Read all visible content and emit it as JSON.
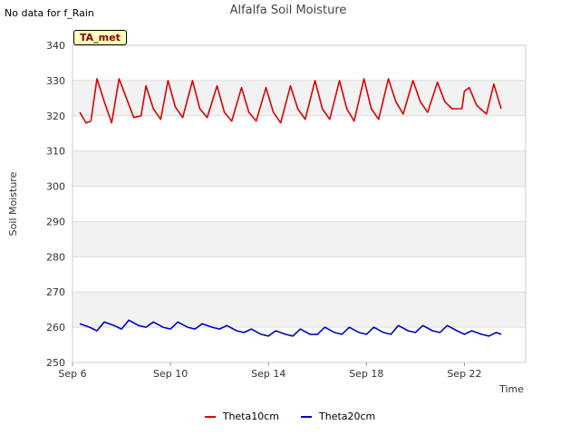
{
  "no_data_note": "No data for f_Rain",
  "badge_label": "TA_met",
  "colors": {
    "theta10": "#dd0000",
    "theta20": "#0000cc",
    "band": "#f2f2f2",
    "grid": "#dddddd"
  },
  "chart_data": {
    "type": "line",
    "title": "Alfalfa Soil Moisture",
    "xlabel": "Time",
    "ylabel": "Soil Moisture",
    "ylim": [
      250,
      340
    ],
    "xlim_days": [
      6.0,
      24.5
    ],
    "yticks": [
      250,
      260,
      270,
      280,
      290,
      300,
      310,
      320,
      330,
      340
    ],
    "xticks": [
      {
        "day": 6,
        "label": "Sep 6"
      },
      {
        "day": 10,
        "label": "Sep 10"
      },
      {
        "day": 14,
        "label": "Sep 14"
      },
      {
        "day": 18,
        "label": "Sep 18"
      },
      {
        "day": 22,
        "label": "Sep 22"
      }
    ],
    "series": [
      {
        "name": "Theta10cm",
        "color": "#dd0000",
        "x": [
          6.3,
          6.55,
          6.75,
          7.0,
          7.3,
          7.6,
          7.9,
          8.2,
          8.5,
          8.8,
          9.0,
          9.3,
          9.6,
          9.9,
          10.2,
          10.5,
          10.9,
          11.2,
          11.5,
          11.9,
          12.2,
          12.5,
          12.9,
          13.2,
          13.5,
          13.9,
          14.2,
          14.5,
          14.9,
          15.2,
          15.5,
          15.9,
          16.2,
          16.5,
          16.9,
          17.2,
          17.5,
          17.9,
          18.2,
          18.5,
          18.9,
          19.2,
          19.5,
          19.9,
          20.2,
          20.5,
          20.9,
          21.2,
          21.5,
          21.9,
          22.0,
          22.2,
          22.5,
          22.9,
          23.2,
          23.5
        ],
        "y": [
          321,
          318,
          318.5,
          330.5,
          324,
          318,
          330.5,
          325,
          319.5,
          320,
          328.5,
          322,
          319,
          330,
          322.5,
          319.5,
          330,
          322,
          319.5,
          328.5,
          321,
          318.5,
          328,
          321,
          318.5,
          328,
          321,
          318,
          328.5,
          322,
          319,
          330,
          322,
          319,
          330,
          322,
          318.5,
          330.5,
          322,
          319,
          330.5,
          324,
          320.5,
          330,
          324,
          321,
          329.5,
          324,
          322,
          322,
          327,
          328,
          323,
          320.5,
          329,
          322
        ]
      },
      {
        "name": "Theta20cm",
        "color": "#0000cc",
        "x": [
          6.3,
          6.7,
          7.0,
          7.3,
          7.7,
          8.0,
          8.3,
          8.7,
          9.0,
          9.3,
          9.7,
          10.0,
          10.3,
          10.7,
          11.0,
          11.3,
          11.7,
          12.0,
          12.3,
          12.7,
          13.0,
          13.3,
          13.7,
          14.0,
          14.3,
          14.7,
          15.0,
          15.3,
          15.7,
          16.0,
          16.3,
          16.7,
          17.0,
          17.3,
          17.7,
          18.0,
          18.3,
          18.7,
          19.0,
          19.3,
          19.7,
          20.0,
          20.3,
          20.7,
          21.0,
          21.3,
          21.7,
          22.0,
          22.3,
          22.7,
          23.0,
          23.3,
          23.5
        ],
        "y": [
          261,
          260,
          259,
          261.5,
          260.5,
          259.5,
          262,
          260.5,
          260,
          261.5,
          260,
          259.5,
          261.5,
          260,
          259.5,
          261,
          260,
          259.5,
          260.5,
          259,
          258.5,
          259.5,
          258,
          257.5,
          259,
          258,
          257.5,
          259.5,
          258,
          258,
          260,
          258.5,
          258,
          260,
          258.5,
          258,
          260,
          258.5,
          258,
          260.5,
          259,
          258.5,
          260.5,
          259,
          258.5,
          260.5,
          259,
          258,
          259,
          258,
          257.5,
          258.5,
          258
        ]
      }
    ]
  }
}
